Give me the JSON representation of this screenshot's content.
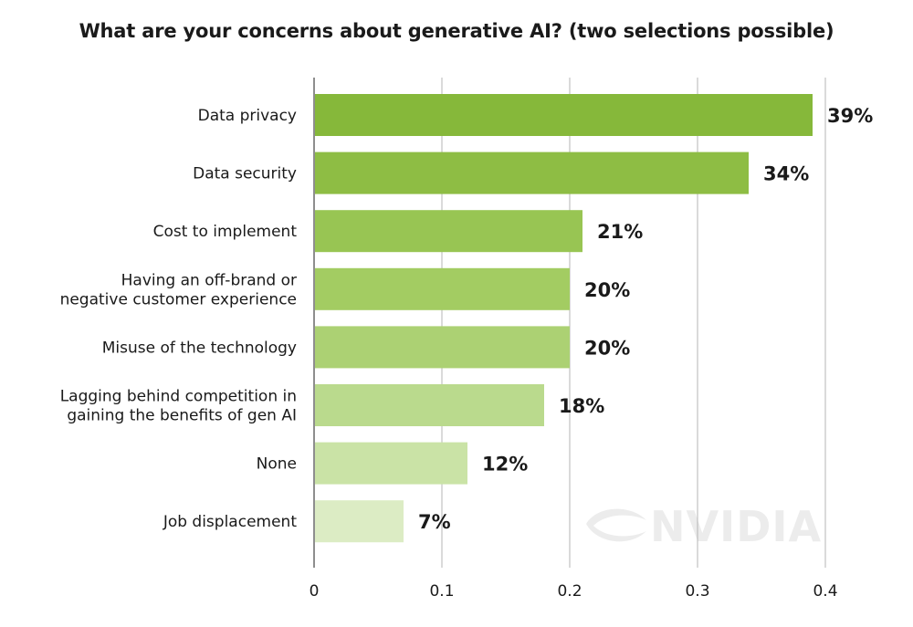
{
  "watermark": {
    "text": "NVIDIA"
  },
  "chart_data": {
    "type": "bar",
    "orientation": "horizontal",
    "title": "What are your concerns about generative AI? (two selections possible)",
    "categories": [
      [
        "Data privacy"
      ],
      [
        "Data security"
      ],
      [
        "Cost to implement"
      ],
      [
        "Having an off-brand or",
        "negative customer experience"
      ],
      [
        "Misuse of the technology"
      ],
      [
        "Lagging behind competition in",
        "gaining the benefits of gen AI"
      ],
      [
        "None"
      ],
      [
        "Job displacement"
      ]
    ],
    "values": [
      0.39,
      0.34,
      0.21,
      0.2,
      0.2,
      0.18,
      0.12,
      0.07
    ],
    "value_labels": [
      "39%",
      "34%",
      "21%",
      "20%",
      "20%",
      "18%",
      "12%",
      "7%"
    ],
    "bar_colors": [
      "#86b83a",
      "#8ebd44",
      "#98c553",
      "#a3cc62",
      "#acd173",
      "#bada8d",
      "#cae3a6",
      "#dcecc4"
    ],
    "xlim": [
      0,
      0.4
    ],
    "xticks": [
      0,
      0.1,
      0.2,
      0.3,
      0.4
    ],
    "xtick_labels": [
      "0",
      "0.1",
      "0.2",
      "0.3",
      "0.4"
    ],
    "grid": true,
    "xlabel": "",
    "ylabel": ""
  }
}
